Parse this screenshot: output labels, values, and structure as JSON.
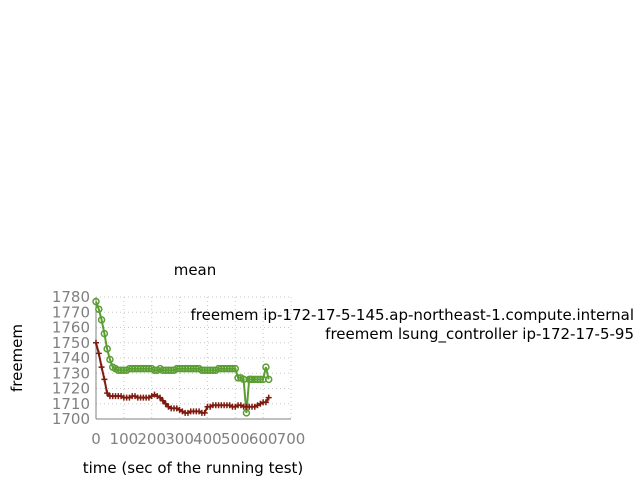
{
  "chart_data": {
    "type": "line",
    "title": "mean",
    "xlabel": "time (sec of the running test)",
    "ylabel": "freemem",
    "xlim": [
      0,
      700
    ],
    "ylim": [
      1700,
      1780
    ],
    "xticks": [
      0,
      100,
      200,
      300,
      400,
      500,
      600,
      700
    ],
    "yticks": [
      1700,
      1710,
      1720,
      1730,
      1740,
      1750,
      1760,
      1770,
      1780
    ],
    "grid": true,
    "legend_position": "right",
    "series": [
      {
        "name": "freemem ip-172-17-5-145.ap-northeast-1.compute.internal",
        "color": "#5a9e32",
        "marker": "circle",
        "x": [
          0,
          10,
          20,
          30,
          40,
          50,
          60,
          70,
          80,
          90,
          100,
          110,
          120,
          130,
          140,
          150,
          160,
          170,
          180,
          190,
          200,
          210,
          220,
          230,
          240,
          250,
          260,
          270,
          280,
          290,
          300,
          310,
          320,
          330,
          340,
          350,
          360,
          370,
          380,
          390,
          400,
          410,
          420,
          430,
          440,
          450,
          460,
          470,
          480,
          490,
          500,
          510,
          520,
          530,
          540,
          550,
          555,
          560,
          570,
          580,
          590,
          600,
          610,
          620
        ],
        "y": [
          1777,
          1772,
          1765,
          1756,
          1746,
          1739,
          1734,
          1733,
          1732,
          1732,
          1732,
          1732,
          1733,
          1733,
          1733,
          1733,
          1733,
          1733,
          1733,
          1733,
          1733,
          1732,
          1732,
          1733,
          1732,
          1732,
          1732,
          1732,
          1732,
          1733,
          1733,
          1733,
          1733,
          1733,
          1733,
          1733,
          1733,
          1733,
          1732,
          1732,
          1732,
          1732,
          1732,
          1732,
          1733,
          1733,
          1733,
          1733,
          1733,
          1733,
          1733,
          1727,
          1727,
          1726,
          1704,
          1726,
          1726,
          1726,
          1726,
          1726,
          1726,
          1726,
          1734,
          1726
        ]
      },
      {
        "name": "freemem lsung_controller ip-172-17-5-95",
        "color": "#7f1a0e",
        "marker": "plus",
        "x": [
          0,
          10,
          20,
          30,
          40,
          50,
          60,
          70,
          80,
          90,
          100,
          110,
          120,
          130,
          140,
          150,
          160,
          170,
          180,
          190,
          200,
          210,
          220,
          230,
          240,
          250,
          260,
          270,
          280,
          290,
          300,
          310,
          320,
          330,
          340,
          350,
          360,
          370,
          380,
          390,
          400,
          410,
          420,
          430,
          440,
          450,
          460,
          470,
          480,
          490,
          500,
          510,
          520,
          530,
          540,
          550,
          560,
          570,
          580,
          590,
          600,
          610,
          620
        ],
        "y": [
          1750,
          1743,
          1734,
          1726,
          1717,
          1715,
          1715,
          1715,
          1715,
          1715,
          1714,
          1714,
          1714,
          1715,
          1715,
          1714,
          1714,
          1714,
          1714,
          1714,
          1715,
          1716,
          1715,
          1714,
          1712,
          1710,
          1708,
          1707,
          1707,
          1707,
          1706,
          1705,
          1704,
          1704,
          1705,
          1705,
          1705,
          1705,
          1704,
          1704,
          1708,
          1708,
          1709,
          1709,
          1709,
          1709,
          1709,
          1709,
          1709,
          1708,
          1708,
          1709,
          1709,
          1708,
          1708,
          1708,
          1708,
          1708,
          1709,
          1710,
          1711,
          1711,
          1714
        ]
      }
    ]
  }
}
